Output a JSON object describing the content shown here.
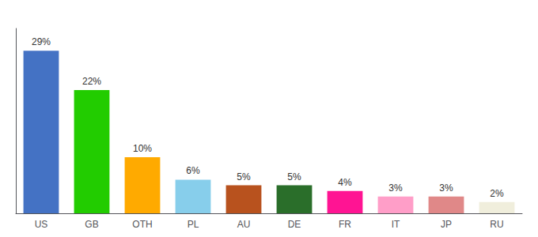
{
  "chart_data": {
    "type": "bar",
    "categories": [
      "US",
      "GB",
      "OTH",
      "PL",
      "AU",
      "DE",
      "FR",
      "IT",
      "JP",
      "RU"
    ],
    "values": [
      29,
      22,
      10,
      6,
      5,
      5,
      4,
      3,
      3,
      2
    ],
    "value_labels": [
      "29%",
      "22%",
      "10%",
      "6%",
      "5%",
      "5%",
      "4%",
      "3%",
      "3%",
      "2%"
    ],
    "data_labels": true,
    "colors": [
      "#4472c4",
      "#22cc00",
      "#ffaa00",
      "#87ceeb",
      "#b8521e",
      "#2a6e2a",
      "#ff1493",
      "#ff9ec8",
      "#e08888",
      "#f0eedc"
    ],
    "ylim": [
      0,
      33
    ],
    "tick_labels": "x",
    "grid": false
  }
}
